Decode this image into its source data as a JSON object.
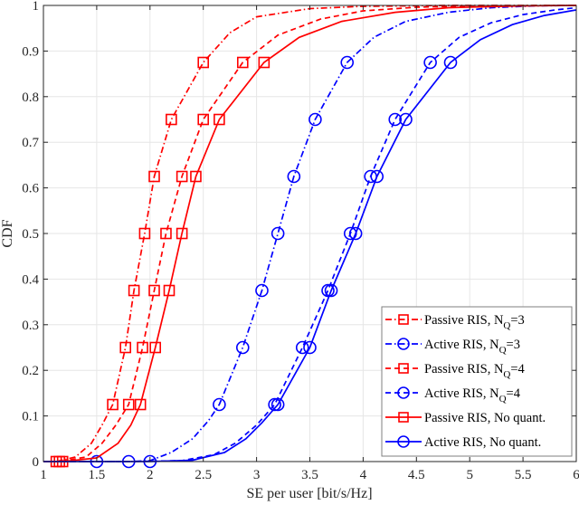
{
  "chart_data": {
    "type": "line",
    "title": "",
    "xlabel": "SE per user [bit/s/Hz]",
    "ylabel": "CDF",
    "xlim": [
      1,
      6
    ],
    "ylim": [
      0,
      1
    ],
    "xticks": [
      1,
      1.5,
      2,
      2.5,
      3,
      3.5,
      4,
      4.5,
      5,
      5.5,
      6
    ],
    "xtick_labels": [
      "1",
      "1.5",
      "2",
      "2.5",
      "3",
      "3.5",
      "4",
      "4.5",
      "5",
      "5.5",
      "6"
    ],
    "yticks": [
      0,
      0.1,
      0.2,
      0.3,
      0.4,
      0.5,
      0.6,
      0.7,
      0.8,
      0.9,
      1
    ],
    "ytick_labels": [
      "0",
      "0.1",
      "0.2",
      "0.3",
      "0.4",
      "0.5",
      "0.6",
      "0.7",
      "0.8",
      "0.9",
      "1"
    ],
    "grid": true,
    "legend_position": "lower right",
    "marker_cdf_levels": [
      0,
      0.125,
      0.25,
      0.375,
      0.5,
      0.625,
      0.75,
      0.875
    ],
    "series": [
      {
        "name": "Passive RIS, N_Q=3",
        "legend_main": "Passive RIS, N",
        "legend_sub": "Q",
        "legend_tail": "=3",
        "color": "#ff0000",
        "linestyle": "dashdot",
        "marker": "square",
        "marker_x": [
          1.12,
          1.65,
          1.77,
          1.85,
          1.95,
          2.04,
          2.2,
          2.5
        ],
        "curve": [
          [
            1.0,
            0
          ],
          [
            1.12,
            0
          ],
          [
            1.3,
            0.01
          ],
          [
            1.45,
            0.04
          ],
          [
            1.55,
            0.08
          ],
          [
            1.65,
            0.125
          ],
          [
            1.77,
            0.25
          ],
          [
            1.85,
            0.375
          ],
          [
            1.95,
            0.5
          ],
          [
            2.04,
            0.625
          ],
          [
            2.2,
            0.75
          ],
          [
            2.5,
            0.875
          ],
          [
            2.75,
            0.94
          ],
          [
            3.0,
            0.975
          ],
          [
            3.5,
            0.993
          ],
          [
            4.0,
            0.998
          ],
          [
            4.8,
            1.0
          ],
          [
            6.0,
            1.0
          ]
        ]
      },
      {
        "name": "Active RIS, N_Q=3",
        "legend_main": "Active RIS, N",
        "legend_sub": "Q",
        "legend_tail": "=3",
        "color": "#0000ff",
        "linestyle": "dashdot",
        "marker": "circle",
        "marker_x": [
          1.5,
          2.65,
          2.87,
          3.05,
          3.2,
          3.35,
          3.55,
          3.85
        ],
        "curve": [
          [
            1.0,
            0
          ],
          [
            1.5,
            0
          ],
          [
            1.8,
            0
          ],
          [
            2.0,
            0.002
          ],
          [
            2.2,
            0.02
          ],
          [
            2.4,
            0.05
          ],
          [
            2.55,
            0.09
          ],
          [
            2.65,
            0.125
          ],
          [
            2.87,
            0.25
          ],
          [
            3.05,
            0.375
          ],
          [
            3.2,
            0.5
          ],
          [
            3.35,
            0.625
          ],
          [
            3.55,
            0.75
          ],
          [
            3.85,
            0.875
          ],
          [
            4.1,
            0.93
          ],
          [
            4.4,
            0.965
          ],
          [
            4.8,
            0.985
          ],
          [
            5.2,
            0.995
          ],
          [
            5.6,
            0.999
          ],
          [
            6.0,
            1.0
          ]
        ]
      },
      {
        "name": "Passive RIS, N_Q=4",
        "legend_main": "Passive RIS, N",
        "legend_sub": "Q",
        "legend_tail": "=4",
        "color": "#ff0000",
        "linestyle": "dashed",
        "marker": "square",
        "marker_x": [
          1.15,
          1.8,
          1.93,
          2.04,
          2.15,
          2.3,
          2.5,
          2.87
        ],
        "curve": [
          [
            1.0,
            0
          ],
          [
            1.15,
            0
          ],
          [
            1.4,
            0.01
          ],
          [
            1.55,
            0.04
          ],
          [
            1.68,
            0.08
          ],
          [
            1.8,
            0.125
          ],
          [
            1.93,
            0.25
          ],
          [
            2.04,
            0.375
          ],
          [
            2.15,
            0.5
          ],
          [
            2.3,
            0.625
          ],
          [
            2.5,
            0.75
          ],
          [
            2.87,
            0.875
          ],
          [
            3.2,
            0.935
          ],
          [
            3.6,
            0.97
          ],
          [
            4.0,
            0.988
          ],
          [
            4.5,
            0.996
          ],
          [
            5.0,
            0.999
          ],
          [
            6.0,
            1.0
          ]
        ]
      },
      {
        "name": "Active RIS, N_Q=4",
        "legend_main": "Active RIS, N",
        "legend_sub": "Q",
        "legend_tail": "=4",
        "color": "#0000ff",
        "linestyle": "dashed",
        "marker": "circle",
        "marker_x": [
          1.8,
          3.17,
          3.43,
          3.67,
          3.88,
          4.07,
          4.3,
          4.63
        ],
        "curve": [
          [
            1.0,
            0
          ],
          [
            1.8,
            0
          ],
          [
            2.3,
            0.002
          ],
          [
            2.6,
            0.015
          ],
          [
            2.8,
            0.04
          ],
          [
            3.0,
            0.08
          ],
          [
            3.17,
            0.125
          ],
          [
            3.43,
            0.25
          ],
          [
            3.67,
            0.375
          ],
          [
            3.88,
            0.5
          ],
          [
            4.07,
            0.625
          ],
          [
            4.3,
            0.75
          ],
          [
            4.63,
            0.875
          ],
          [
            4.9,
            0.93
          ],
          [
            5.2,
            0.962
          ],
          [
            5.5,
            0.98
          ],
          [
            5.8,
            0.99
          ],
          [
            6.0,
            0.995
          ]
        ]
      },
      {
        "name": "Passive RIS, No quant.",
        "legend_main": "Passive RIS, No quant.",
        "legend_sub": "",
        "legend_tail": "",
        "color": "#ff0000",
        "linestyle": "solid",
        "marker": "square",
        "marker_x": [
          1.18,
          1.91,
          2.05,
          2.18,
          2.3,
          2.43,
          2.65,
          3.07
        ],
        "curve": [
          [
            1.0,
            0
          ],
          [
            1.18,
            0
          ],
          [
            1.5,
            0.008
          ],
          [
            1.7,
            0.04
          ],
          [
            1.82,
            0.08
          ],
          [
            1.91,
            0.125
          ],
          [
            2.05,
            0.25
          ],
          [
            2.18,
            0.375
          ],
          [
            2.3,
            0.5
          ],
          [
            2.43,
            0.625
          ],
          [
            2.65,
            0.75
          ],
          [
            3.07,
            0.875
          ],
          [
            3.4,
            0.93
          ],
          [
            3.8,
            0.965
          ],
          [
            4.3,
            0.985
          ],
          [
            4.8,
            0.995
          ],
          [
            5.5,
            0.999
          ],
          [
            6.0,
            1.0
          ]
        ]
      },
      {
        "name": "Active RIS, No quant.",
        "legend_main": "Active RIS, No quant.",
        "legend_sub": "",
        "legend_tail": "",
        "color": "#0000ff",
        "linestyle": "solid",
        "marker": "circle",
        "marker_x": [
          2.0,
          3.2,
          3.5,
          3.7,
          3.93,
          4.13,
          4.4,
          4.82
        ],
        "curve": [
          [
            1.0,
            0
          ],
          [
            2.0,
            0
          ],
          [
            2.4,
            0.003
          ],
          [
            2.7,
            0.02
          ],
          [
            2.9,
            0.05
          ],
          [
            3.05,
            0.085
          ],
          [
            3.2,
            0.125
          ],
          [
            3.5,
            0.25
          ],
          [
            3.7,
            0.375
          ],
          [
            3.93,
            0.5
          ],
          [
            4.13,
            0.625
          ],
          [
            4.4,
            0.75
          ],
          [
            4.82,
            0.875
          ],
          [
            5.1,
            0.925
          ],
          [
            5.4,
            0.958
          ],
          [
            5.7,
            0.978
          ],
          [
            6.0,
            0.99
          ]
        ]
      }
    ]
  }
}
